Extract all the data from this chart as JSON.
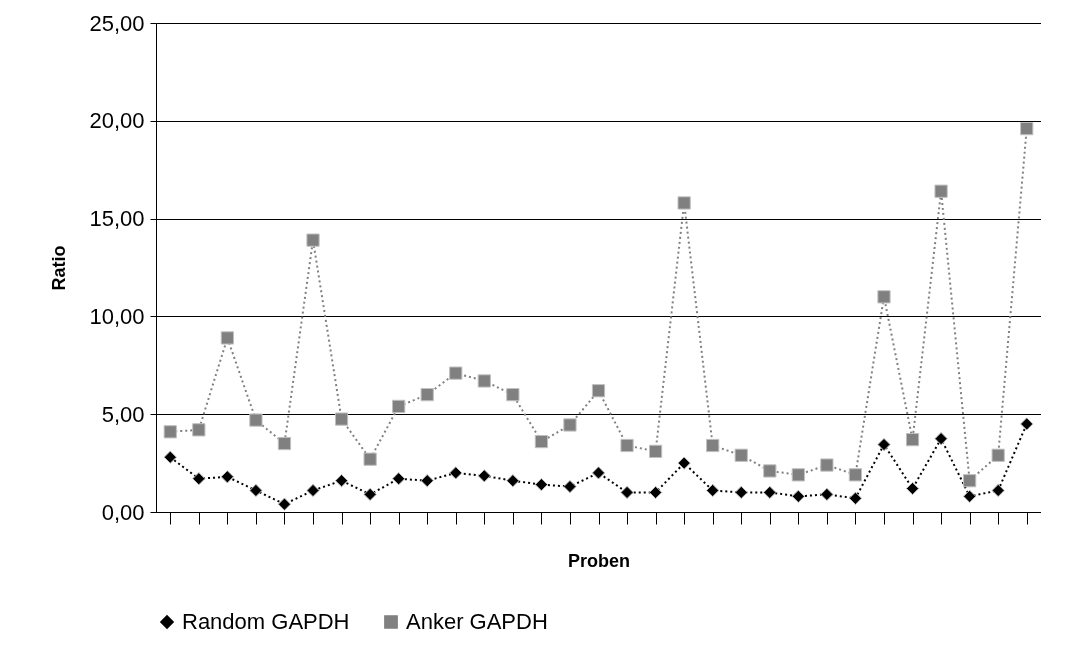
{
  "chart_data": {
    "type": "line",
    "xlabel": "Proben",
    "ylabel": "Ratio",
    "categories": [
      null,
      null,
      null,
      null,
      null,
      null,
      null,
      null,
      null,
      null,
      null,
      null,
      null,
      null,
      null,
      null,
      null,
      null,
      null,
      null,
      null,
      null,
      null,
      null,
      null,
      null,
      null,
      null,
      null,
      null,
      null
    ],
    "series": [
      {
        "name": "Random GAPDH",
        "color": "#000000",
        "marker": "diamond",
        "values": [
          2.8,
          1.7,
          1.8,
          1.1,
          0.4,
          1.1,
          1.6,
          0.9,
          1.7,
          1.6,
          2.0,
          1.85,
          1.6,
          1.4,
          1.3,
          2.0,
          1.0,
          1.0,
          2.5,
          1.1,
          1.0,
          1.0,
          0.8,
          0.9,
          0.7,
          3.45,
          1.2,
          3.75,
          0.8,
          1.1,
          4.5
        ]
      },
      {
        "name": "Anker GAPDH",
        "color": "#808080",
        "marker": "square",
        "values": [
          4.1,
          4.2,
          8.9,
          4.7,
          3.5,
          13.9,
          4.75,
          2.7,
          5.4,
          6.0,
          7.1,
          6.7,
          6.0,
          3.6,
          4.45,
          6.2,
          3.4,
          3.1,
          15.8,
          3.4,
          2.9,
          2.1,
          1.9,
          2.4,
          1.9,
          11.0,
          3.7,
          16.4,
          1.6,
          2.9,
          19.6
        ]
      }
    ],
    "ylim": [
      0,
      25
    ],
    "yticks": [
      {
        "value": 0,
        "label": "0,00"
      },
      {
        "value": 5,
        "label": "5,00"
      },
      {
        "value": 10,
        "label": "10,00"
      },
      {
        "value": 15,
        "label": "15,00"
      },
      {
        "value": 20,
        "label": "20,00"
      },
      {
        "value": 25,
        "label": "25,00"
      }
    ],
    "grid": "y",
    "legend": "bottom",
    "line_style": "dotted"
  }
}
